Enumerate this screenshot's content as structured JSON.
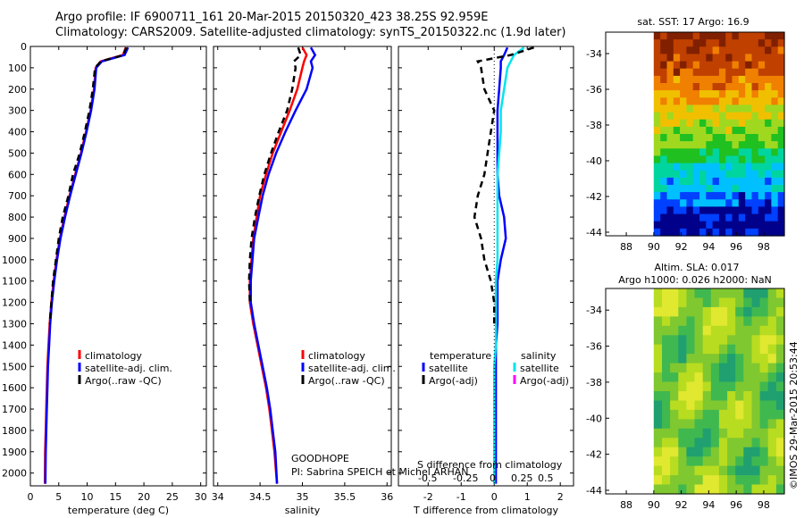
{
  "header": {
    "line1": "Argo profile: IF 6900711_161 20-Mar-2015 20150320_423 38.25S 92.959E",
    "line2": "Climatology: CARS2009. Satellite-adjusted climatology: synTS_20150322.nc (1.9d later)"
  },
  "colors": {
    "climatology": "#ff0000",
    "satellite": "#0000ff",
    "argo": "#000000",
    "salinity_satellite": "#00e5ee",
    "salinity_argo": "#ff00ff"
  },
  "chart_data": [
    {
      "type": "line",
      "id": "temperature",
      "xlabel": "temperature (deg C)",
      "ylabel": "",
      "xlim": [
        0,
        31
      ],
      "ylim": [
        2060,
        0
      ],
      "y_inverted": true,
      "xticks": [
        0,
        5,
        10,
        15,
        20,
        25,
        30
      ],
      "yticks": [
        0,
        100,
        200,
        300,
        400,
        500,
        600,
        700,
        800,
        900,
        1000,
        1100,
        1200,
        1300,
        1400,
        1500,
        1600,
        1700,
        1800,
        1900,
        2000
      ],
      "legend": [
        "climatology",
        "satellite-adj. clim.",
        "Argo(..raw -QC)"
      ],
      "series": [
        {
          "name": "climatology",
          "style": "solid",
          "color": "#ff0000",
          "x": [
            16.8,
            16.3,
            12.4,
            11.5,
            11.2,
            10.6,
            9.8,
            8.9,
            7.9,
            6.9,
            6.0,
            5.2,
            4.6,
            4.1,
            3.7,
            3.4,
            3.2,
            3.0,
            2.9,
            2.8,
            2.7,
            2.6,
            2.55
          ],
          "y": [
            5,
            40,
            70,
            100,
            200,
            300,
            400,
            500,
            600,
            700,
            800,
            900,
            1000,
            1100,
            1200,
            1300,
            1400,
            1500,
            1600,
            1700,
            1800,
            1900,
            2050
          ]
        },
        {
          "name": "satellite-adj. clim.",
          "style": "solid",
          "color": "#0000ff",
          "x": [
            17.2,
            16.6,
            12.6,
            11.6,
            11.3,
            10.7,
            9.9,
            9.0,
            8.0,
            7.0,
            6.1,
            5.3,
            4.7,
            4.2,
            3.8,
            3.5,
            3.3,
            3.1,
            3.0,
            2.9,
            2.8,
            2.7,
            2.65
          ],
          "y": [
            5,
            40,
            70,
            100,
            200,
            300,
            400,
            500,
            600,
            700,
            800,
            900,
            1000,
            1100,
            1200,
            1300,
            1400,
            1500,
            1600,
            1700,
            1800,
            1900,
            2050
          ]
        },
        {
          "name": "Argo(..raw -QC)",
          "style": "dashed",
          "color": "#000000",
          "x": [
            16.9,
            16.4,
            12.4,
            11.4,
            11.0,
            10.4,
            9.6,
            8.7,
            7.5,
            6.7,
            5.7,
            5.0,
            4.5,
            4.0,
            3.7,
            3.4
          ],
          "y": [
            5,
            40,
            70,
            100,
            200,
            300,
            400,
            500,
            600,
            700,
            800,
            900,
            1000,
            1100,
            1200,
            1300
          ]
        }
      ],
      "annotation": ""
    },
    {
      "type": "line",
      "id": "salinity",
      "xlabel": "salinity",
      "xlim": [
        33.95,
        36.05
      ],
      "ylim": [
        2060,
        0
      ],
      "y_inverted": true,
      "xticks": [
        34,
        34.5,
        35,
        35.5,
        36
      ],
      "legend": [
        "climatology",
        "satellite-adj. clim.",
        "Argo(..raw -QC)"
      ],
      "series": [
        {
          "name": "climatology",
          "style": "solid",
          "color": "#ff0000",
          "x": [
            35.0,
            35.05,
            35.02,
            35.0,
            34.94,
            34.85,
            34.75,
            34.65,
            34.57,
            34.5,
            34.46,
            34.42,
            34.4,
            34.38,
            34.38,
            34.42,
            34.47,
            34.52,
            34.57,
            34.61,
            34.64,
            34.67,
            34.7
          ],
          "y": [
            5,
            40,
            70,
            100,
            200,
            300,
            400,
            500,
            600,
            700,
            800,
            900,
            1000,
            1100,
            1200,
            1300,
            1400,
            1500,
            1600,
            1700,
            1800,
            1900,
            2050
          ]
        },
        {
          "name": "satellite-adj. clim.",
          "style": "solid",
          "color": "#0000ff",
          "x": [
            35.1,
            35.15,
            35.1,
            35.12,
            35.05,
            34.92,
            34.8,
            34.69,
            34.6,
            34.53,
            34.48,
            34.43,
            34.41,
            34.39,
            34.39,
            34.43,
            34.48,
            34.53,
            34.58,
            34.62,
            34.65,
            34.68,
            34.7
          ],
          "y": [
            5,
            40,
            70,
            100,
            200,
            300,
            400,
            500,
            600,
            700,
            800,
            900,
            1000,
            1100,
            1200,
            1300,
            1400,
            1500,
            1600,
            1700,
            1800,
            1900,
            2050
          ]
        },
        {
          "name": "Argo(..raw -QC)",
          "style": "dashed",
          "color": "#000000",
          "x": [
            34.95,
            34.98,
            34.9,
            34.92,
            34.88,
            34.82,
            34.72,
            34.63,
            34.55,
            34.49,
            34.44,
            34.4,
            34.38,
            34.37,
            34.38
          ],
          "y": [
            5,
            40,
            70,
            100,
            200,
            300,
            400,
            500,
            600,
            700,
            800,
            900,
            1000,
            1100,
            1200
          ]
        }
      ],
      "annotation_line1": "GOODHOPE",
      "annotation_line2": "PI: Sabrina SPEICH et Michel ARHAN"
    },
    {
      "type": "line",
      "id": "difference",
      "xlabel": "T difference from climatology",
      "top_xlabel": "S difference from climatology",
      "xlim": [
        -2.9,
        2.4
      ],
      "ylim": [
        2060,
        0
      ],
      "y_inverted": true,
      "xticks": [
        -2,
        -1,
        0,
        1,
        2
      ],
      "top_xticks": [
        "-0.5",
        "-0.25",
        "0",
        "0.25",
        "0.5"
      ],
      "legend_headers": [
        "temperature",
        "salinity"
      ],
      "legend": [
        "satellite",
        "Argo(-adj)",
        "satellite",
        "Argo(-adj)"
      ],
      "series": [
        {
          "name": "temperature satellite",
          "style": "solid",
          "color": "#0000ff",
          "x": [
            0.4,
            0.3,
            0.2,
            0.2,
            0.15,
            0.1,
            0.1,
            0.1,
            0.1,
            0.15,
            0.3,
            0.35,
            0.2,
            0.1,
            0.1,
            0.1,
            0.05,
            0.05,
            0.05,
            0.05,
            0.05,
            0.05,
            0.05
          ],
          "y": [
            5,
            40,
            70,
            100,
            200,
            300,
            400,
            500,
            600,
            700,
            800,
            900,
            1000,
            1100,
            1200,
            1300,
            1400,
            1500,
            1600,
            1700,
            1800,
            1900,
            2050
          ]
        },
        {
          "name": "salinity satellite",
          "style": "solid",
          "color": "#00e5ee",
          "x": [
            0.9,
            0.6,
            0.5,
            0.4,
            0.3,
            0.2,
            0.2,
            0.15,
            0.1,
            0.1,
            0.1,
            0.1,
            0.1,
            0.05,
            0.05,
            0.05,
            0.05,
            0.0,
            0.0,
            0.0,
            0.0,
            0.0,
            0.0
          ],
          "y": [
            5,
            40,
            70,
            100,
            200,
            300,
            400,
            500,
            600,
            700,
            800,
            900,
            1000,
            1100,
            1200,
            1300,
            1400,
            1500,
            1600,
            1700,
            1800,
            1900,
            2050
          ]
        },
        {
          "name": "temperature Argo(-adj)",
          "style": "dashed",
          "color": "#000000",
          "x": [
            1.2,
            0.5,
            -0.5,
            -0.4,
            -0.3,
            0.0,
            -0.1,
            -0.2,
            -0.3,
            -0.5,
            -0.6,
            -0.4,
            -0.3,
            -0.1,
            0.0,
            0.0
          ],
          "y": [
            5,
            40,
            70,
            100,
            200,
            300,
            400,
            500,
            600,
            700,
            800,
            900,
            1000,
            1100,
            1200,
            1300
          ]
        }
      ]
    },
    {
      "type": "heatmap",
      "id": "sst_map",
      "title": "sat. SST: 17 Argo: 16.9",
      "xlim": [
        86.5,
        99.5
      ],
      "ylim": [
        -44.2,
        -32.8
      ],
      "xticks": [
        88,
        90,
        92,
        94,
        96,
        98
      ],
      "yticks": [
        -34,
        -36,
        -38,
        -40,
        -42,
        -44
      ],
      "data_xlim": [
        90,
        99.5
      ],
      "colorscale": [
        "#00008b",
        "#0040ff",
        "#00c0ff",
        "#00d5a0",
        "#20c020",
        "#a0d820",
        "#f0c000",
        "#f08000",
        "#c04000",
        "#802000"
      ],
      "rows_mean_level": [
        8.6,
        8.3,
        8.0,
        7.3,
        6.6,
        5.8,
        5.2,
        4.6,
        3.8,
        3.0,
        2.2,
        1.4,
        0.6,
        0.2
      ]
    },
    {
      "type": "heatmap",
      "id": "sla_map",
      "title_line1": "Altim. SLA: 0.017",
      "title_line2": "Argo h1000: 0.026 h2000: NaN",
      "xlim": [
        86.5,
        99.5
      ],
      "ylim": [
        -44.2,
        -32.8
      ],
      "xticks": [
        88,
        90,
        92,
        94,
        96,
        98
      ],
      "yticks": [
        -34,
        -36,
        -38,
        -40,
        -42,
        -44
      ],
      "data_xlim": [
        90,
        99.5
      ],
      "colorscale": [
        "#20a070",
        "#40b850",
        "#80c830",
        "#b8dc20",
        "#e0e830"
      ]
    }
  ],
  "footer": {
    "stamp": "©IMOS 29-Mar-2015 20:53:44"
  }
}
